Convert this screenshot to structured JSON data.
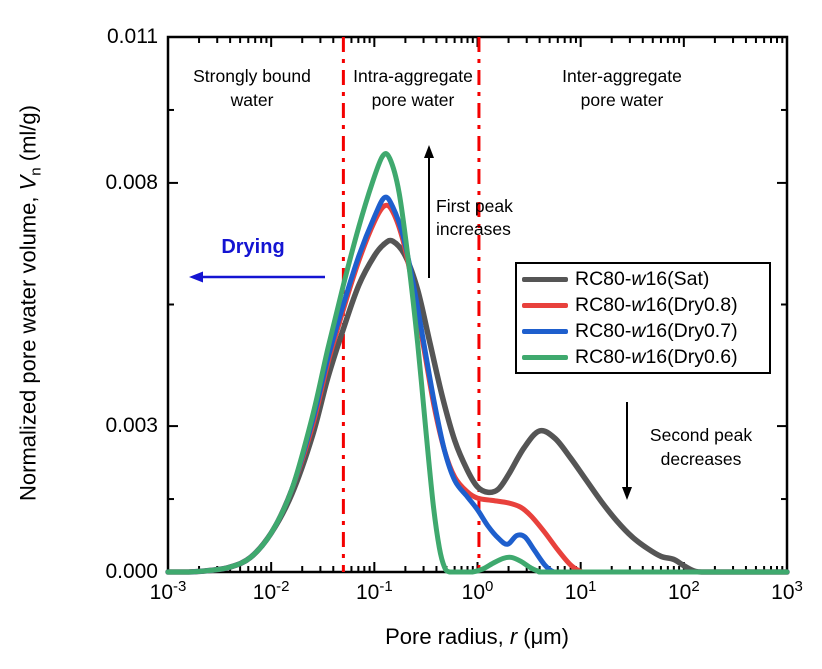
{
  "chart_data": {
    "type": "line",
    "x_scale": "log10",
    "x_range_log": [
      -3,
      3
    ],
    "y_range": [
      0,
      0.011
    ],
    "grid": false,
    "xlabel": {
      "pre": "Pore radius, ",
      "italic": "r",
      "post": " (μm)"
    },
    "ylabel": {
      "pre": "Normalized pore water volume, ",
      "italic": "V",
      "sub": "n",
      "post": " (ml/g)"
    },
    "x_ticks": [
      {
        "base": "10",
        "exp": "-3",
        "log": -3
      },
      {
        "base": "10",
        "exp": "-2",
        "log": -2
      },
      {
        "base": "10",
        "exp": "-1",
        "log": -1
      },
      {
        "base": "10",
        "exp": "0",
        "log": 0
      },
      {
        "base": "10",
        "exp": "1",
        "log": 1
      },
      {
        "base": "10",
        "exp": "2",
        "log": 2
      },
      {
        "base": "10",
        "exp": "3",
        "log": 3
      }
    ],
    "y_ticks": [
      {
        "label": "0.000",
        "value": 0.0
      },
      {
        "label": "0.003",
        "value": 0.003
      },
      {
        "label": "0.008",
        "value": 0.008
      },
      {
        "label": "0.011",
        "value": 0.011
      }
    ],
    "y_minor_ticks": [
      0.0015,
      0.0055,
      0.0095
    ],
    "reference_lines": {
      "color": "#f40000",
      "style": "dash-dot",
      "log_positions": [
        -1.3,
        0.014
      ],
      "r_um": [
        0.05,
        1.03
      ]
    },
    "legend_position": "center-right",
    "series": [
      {
        "name_pre": "RC80-",
        "name_it": "w",
        "name_post": "16(Sat)",
        "color": "#555555",
        "width": 5.5,
        "points": [
          [
            -3.0,
            0
          ],
          [
            -2.8,
            0
          ],
          [
            -2.6,
            3e-05
          ],
          [
            -2.4,
            0.0001
          ],
          [
            -2.2,
            0.0003
          ],
          [
            -2.0,
            0.0008
          ],
          [
            -1.8,
            0.0016
          ],
          [
            -1.6,
            0.0028
          ],
          [
            -1.45,
            0.004
          ],
          [
            -1.3,
            0.005
          ],
          [
            -1.15,
            0.0059
          ],
          [
            -1.0,
            0.0065
          ],
          [
            -0.9,
            0.00675
          ],
          [
            -0.82,
            0.0068
          ],
          [
            -0.7,
            0.0065
          ],
          [
            -0.58,
            0.0058
          ],
          [
            -0.46,
            0.0047
          ],
          [
            -0.34,
            0.0036
          ],
          [
            -0.22,
            0.0027
          ],
          [
            -0.1,
            0.0021
          ],
          [
            0.0,
            0.00175
          ],
          [
            0.1,
            0.00164
          ],
          [
            0.2,
            0.0017
          ],
          [
            0.3,
            0.002
          ],
          [
            0.45,
            0.00255
          ],
          [
            0.6,
            0.0029
          ],
          [
            0.75,
            0.00275
          ],
          [
            0.9,
            0.00235
          ],
          [
            1.05,
            0.0019
          ],
          [
            1.2,
            0.00145
          ],
          [
            1.35,
            0.00105
          ],
          [
            1.5,
            0.00072
          ],
          [
            1.65,
            0.00048
          ],
          [
            1.78,
            0.00032
          ],
          [
            1.9,
            0.00026
          ],
          [
            2.0,
            0.00013
          ],
          [
            2.1,
            2e-05
          ],
          [
            2.2,
            0
          ],
          [
            2.6,
            0
          ],
          [
            3.0,
            0
          ]
        ]
      },
      {
        "name_pre": "RC80-",
        "name_it": "w",
        "name_post": "16(Dry0.8)",
        "color": "#e8413c",
        "width": 5,
        "points": [
          [
            -3.0,
            0
          ],
          [
            -2.8,
            0
          ],
          [
            -2.6,
            3e-05
          ],
          [
            -2.4,
            0.0001
          ],
          [
            -2.2,
            0.0003
          ],
          [
            -2.0,
            0.0008
          ],
          [
            -1.8,
            0.0017
          ],
          [
            -1.6,
            0.003
          ],
          [
            -1.45,
            0.0043
          ],
          [
            -1.3,
            0.0054
          ],
          [
            -1.15,
            0.0064
          ],
          [
            -1.0,
            0.0072
          ],
          [
            -0.9,
            0.00753
          ],
          [
            -0.82,
            0.0074
          ],
          [
            -0.72,
            0.0068
          ],
          [
            -0.62,
            0.0058
          ],
          [
            -0.52,
            0.0046
          ],
          [
            -0.42,
            0.0034
          ],
          [
            -0.32,
            0.0025
          ],
          [
            -0.22,
            0.00195
          ],
          [
            -0.1,
            0.00165
          ],
          [
            0.0,
            0.00152
          ],
          [
            0.15,
            0.00147
          ],
          [
            0.3,
            0.00142
          ],
          [
            0.42,
            0.00133
          ],
          [
            0.52,
            0.00115
          ],
          [
            0.65,
            0.00082
          ],
          [
            0.78,
            0.00045
          ],
          [
            0.9,
            0.00015
          ],
          [
            1.0,
            1e-05
          ],
          [
            1.06,
            0
          ],
          [
            1.5,
            0
          ],
          [
            3.0,
            0
          ]
        ]
      },
      {
        "name_pre": "RC80-",
        "name_it": "w",
        "name_post": "16(Dry0.7)",
        "color": "#1e5fcd",
        "width": 5,
        "points": [
          [
            -3.0,
            0
          ],
          [
            -2.8,
            0
          ],
          [
            -2.6,
            3e-05
          ],
          [
            -2.4,
            0.0001
          ],
          [
            -2.2,
            0.0003
          ],
          [
            -2.0,
            0.0008
          ],
          [
            -1.8,
            0.0017
          ],
          [
            -1.6,
            0.0031
          ],
          [
            -1.45,
            0.0044
          ],
          [
            -1.3,
            0.0055
          ],
          [
            -1.15,
            0.0065
          ],
          [
            -1.0,
            0.0073
          ],
          [
            -0.9,
            0.0077
          ],
          [
            -0.82,
            0.0075
          ],
          [
            -0.72,
            0.0069
          ],
          [
            -0.62,
            0.0059
          ],
          [
            -0.52,
            0.0047
          ],
          [
            -0.42,
            0.0035
          ],
          [
            -0.32,
            0.0025
          ],
          [
            -0.22,
            0.00188
          ],
          [
            -0.1,
            0.00155
          ],
          [
            0.0,
            0.00128
          ],
          [
            0.1,
            0.00095
          ],
          [
            0.2,
            0.0007
          ],
          [
            0.29,
            0.00057
          ],
          [
            0.38,
            0.00075
          ],
          [
            0.46,
            0.00072
          ],
          [
            0.55,
            0.00045
          ],
          [
            0.65,
            0.00015
          ],
          [
            0.73,
            1e-05
          ],
          [
            0.8,
            0
          ],
          [
            1.5,
            0
          ],
          [
            3.0,
            0
          ]
        ]
      },
      {
        "name_pre": "RC80-",
        "name_it": "w",
        "name_post": "16(Dry0.6)",
        "color": "#3fa96e",
        "width": 5,
        "points": [
          [
            -3.0,
            0
          ],
          [
            -2.8,
            0
          ],
          [
            -2.6,
            3e-05
          ],
          [
            -2.4,
            0.0001
          ],
          [
            -2.2,
            0.0003
          ],
          [
            -2.0,
            0.0008
          ],
          [
            -1.8,
            0.0017
          ],
          [
            -1.6,
            0.0032
          ],
          [
            -1.45,
            0.0046
          ],
          [
            -1.3,
            0.0059
          ],
          [
            -1.15,
            0.0071
          ],
          [
            -1.02,
            0.008
          ],
          [
            -0.92,
            0.00855
          ],
          [
            -0.85,
            0.0085
          ],
          [
            -0.76,
            0.0078
          ],
          [
            -0.67,
            0.0064
          ],
          [
            -0.58,
            0.0047
          ],
          [
            -0.5,
            0.0029
          ],
          [
            -0.43,
            0.0014
          ],
          [
            -0.37,
            0.0005
          ],
          [
            -0.32,
            0.0001
          ],
          [
            -0.27,
            0
          ],
          [
            -0.15,
            0
          ],
          [
            -0.05,
            0
          ],
          [
            0.05,
            6e-05
          ],
          [
            0.15,
            0.00018
          ],
          [
            0.25,
            0.00028
          ],
          [
            0.33,
            0.0003
          ],
          [
            0.42,
            0.00022
          ],
          [
            0.52,
            8e-05
          ],
          [
            0.6,
            1e-05
          ],
          [
            0.68,
            0
          ],
          [
            1.5,
            0
          ],
          [
            3.0,
            0
          ]
        ]
      }
    ],
    "annotations": {
      "regions": [
        {
          "line1": "Strongly bound",
          "line2": "water"
        },
        {
          "line1": "Intra-aggregate",
          "line2": "pore water"
        },
        {
          "line1": "Inter-aggregate",
          "line2": "pore water"
        }
      ],
      "drying": {
        "text": "Drying",
        "color": "#1414d2"
      },
      "first_peak": {
        "line1": "First peak",
        "line2": "increases"
      },
      "second_peak": {
        "line1": "Second peak",
        "line2": "decreases"
      }
    }
  }
}
